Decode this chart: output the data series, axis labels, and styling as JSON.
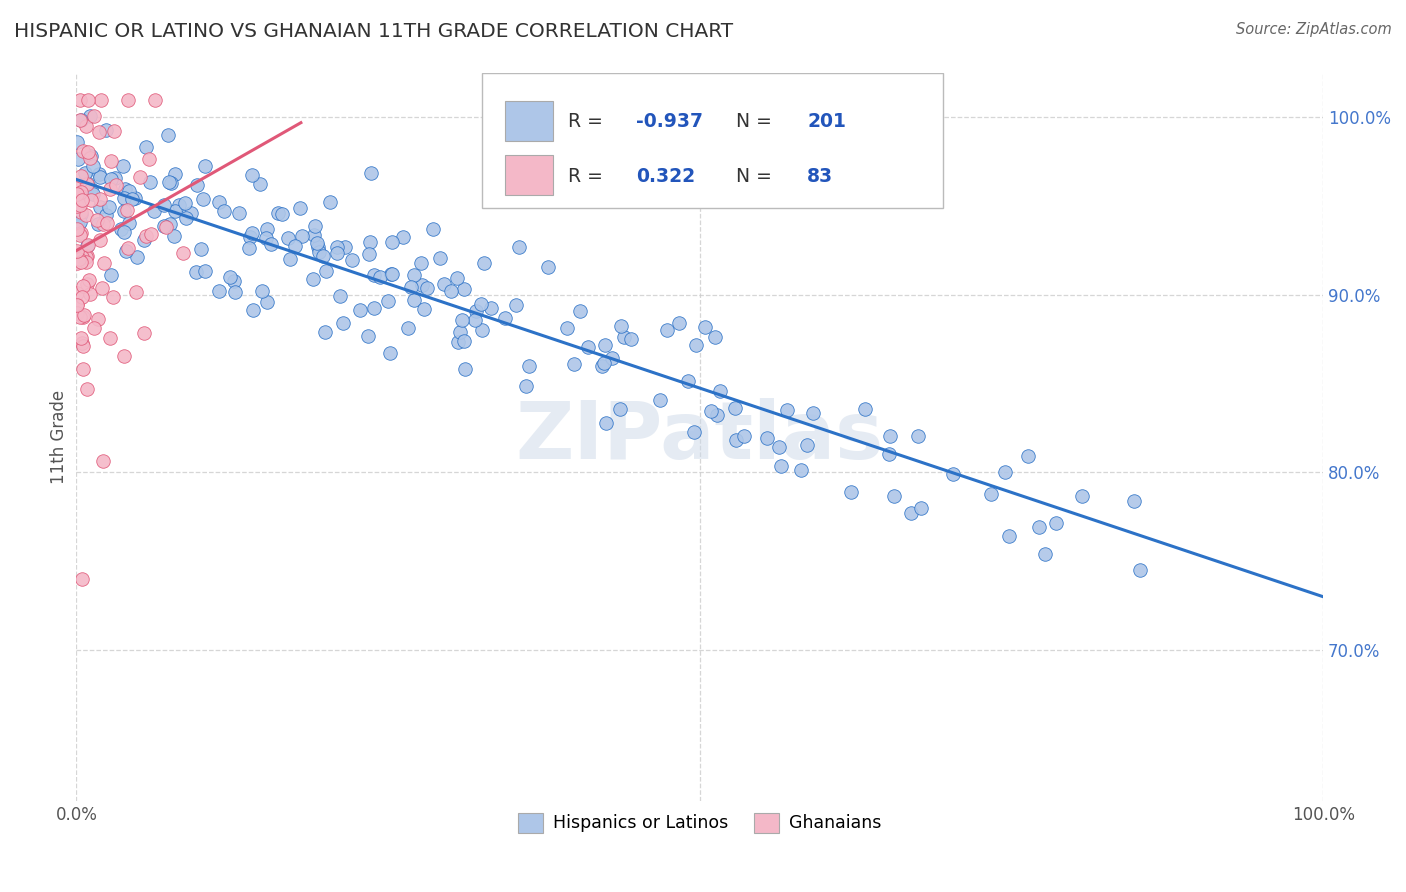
{
  "title": "HISPANIC OR LATINO VS GHANAIAN 11TH GRADE CORRELATION CHART",
  "source": "Source: ZipAtlas.com",
  "ylabel": "11th Grade",
  "xlim": [
    0.0,
    1.0
  ],
  "ylim": [
    0.615,
    1.025
  ],
  "ytick_labels": [
    "70.0%",
    "80.0%",
    "90.0%",
    "100.0%"
  ],
  "ytick_values": [
    0.7,
    0.8,
    0.9,
    1.0
  ],
  "blue_R": -0.937,
  "blue_N": 201,
  "pink_R": 0.322,
  "pink_N": 83,
  "blue_color": "#aec6e8",
  "pink_color": "#f4b8c8",
  "blue_line_color": "#2c72c7",
  "pink_line_color": "#e05878",
  "legend_blue_color": "#aec6e8",
  "legend_pink_color": "#f4b8c8",
  "background_color": "#ffffff",
  "grid_color": "#cccccc",
  "title_color": "#333333",
  "source_color": "#666666",
  "watermark_color": "#ccd8e8"
}
